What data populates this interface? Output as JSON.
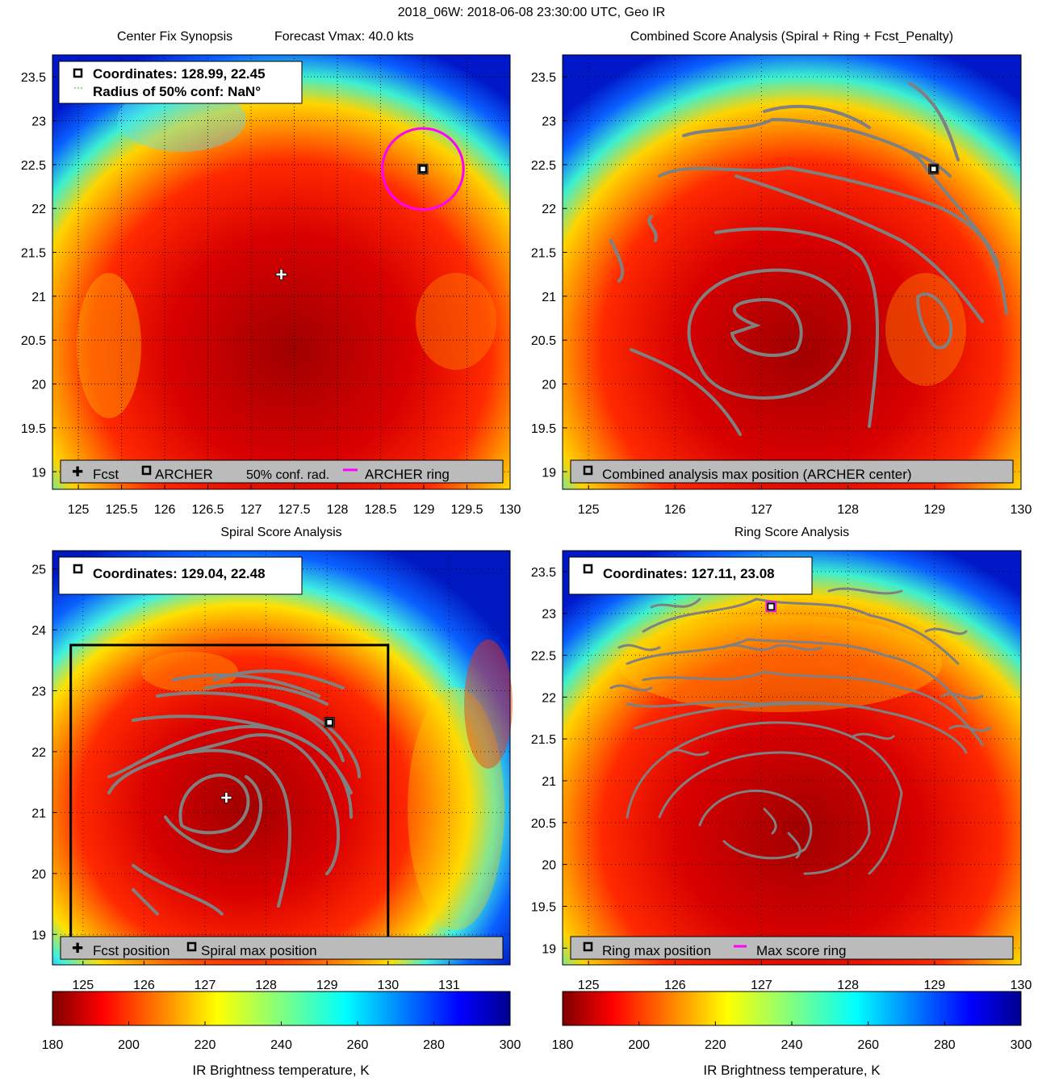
{
  "figure_title": "2018_06W: 2018-06-08 23:30:00 UTC, Geo IR",
  "colors": {
    "magenta": "#ff00ff",
    "contour": "#808080",
    "legend_bg": "#bbbbbb",
    "frame": "#000000"
  },
  "chart_data": [
    {
      "id": "center_fix",
      "type": "heatmap",
      "title": "Center Fix Synopsis",
      "subtitle": "Forecast Vmax: 40.0 kts",
      "xlim": [
        124.7,
        130.0
      ],
      "ylim": [
        18.8,
        23.75
      ],
      "xticks": [
        125,
        125.5,
        126,
        126.5,
        127,
        127.5,
        128,
        128.5,
        129,
        129.5,
        130
      ],
      "xtick_labels": [
        "125",
        "125.5",
        "126",
        "126.5",
        "127",
        "127.5",
        "128",
        "128.5",
        "129",
        "129.5",
        "130"
      ],
      "yticks": [
        19,
        19.5,
        20,
        20.5,
        21,
        21.5,
        22,
        22.5,
        23,
        23.5
      ],
      "ytick_labels": [
        "19",
        "19.5",
        "20",
        "20.5",
        "21",
        "21.5",
        "22",
        "22.5",
        "23",
        "23.5"
      ],
      "info_line1": "Coordinates: 128.99, 22.45",
      "info_line2": "Radius of 50% conf: NaN°",
      "legend": [
        "Fcst",
        "ARCHER",
        "50% conf. rad.",
        "ARCHER ring"
      ],
      "markers": {
        "fcst": [
          127.35,
          21.25
        ],
        "archer": [
          128.99,
          22.45
        ]
      },
      "ring_radius_deg": 0.47
    },
    {
      "id": "combined",
      "type": "heatmap",
      "title": "Combined Score Analysis (Spiral + Ring + Fcst_Penalty)",
      "xlim": [
        124.7,
        130.0
      ],
      "ylim": [
        18.8,
        23.75
      ],
      "xticks": [
        125,
        126,
        127,
        128,
        129,
        130
      ],
      "xtick_labels": [
        "125",
        "126",
        "127",
        "128",
        "129",
        "130"
      ],
      "yticks": [
        19,
        19.5,
        20,
        20.5,
        21,
        21.5,
        22,
        22.5,
        23,
        23.5
      ],
      "ytick_labels": [
        "19",
        "19.5",
        "20",
        "20.5",
        "21",
        "21.5",
        "22",
        "22.5",
        "23",
        "23.5"
      ],
      "legend": [
        "Combined analysis max position (ARCHER center)"
      ],
      "markers": {
        "archer": [
          128.99,
          22.45
        ]
      }
    },
    {
      "id": "spiral",
      "type": "heatmap",
      "title": "Spiral Score Analysis",
      "xlim": [
        124.5,
        132.0
      ],
      "ylim": [
        18.5,
        25.3
      ],
      "xticks": [
        125,
        126,
        127,
        128,
        129,
        130,
        131
      ],
      "xtick_labels": [
        "125",
        "126",
        "127",
        "128",
        "129",
        "130",
        "131"
      ],
      "yticks": [
        19,
        20,
        21,
        22,
        23,
        24,
        25
      ],
      "ytick_labels": [
        "19",
        "20",
        "21",
        "22",
        "23",
        "24",
        "25"
      ],
      "info_line1": "Coordinates: 129.04, 22.48",
      "legend": [
        "Fcst position",
        "Spiral max position"
      ],
      "markers": {
        "fcst": [
          127.35,
          21.25
        ],
        "spiral": [
          129.04,
          22.48
        ]
      },
      "box": {
        "x0": 124.8,
        "x1": 130.0,
        "y0": 18.8,
        "y1": 23.75
      }
    },
    {
      "id": "ring",
      "type": "heatmap",
      "title": "Ring Score Analysis",
      "xlim": [
        124.7,
        130.0
      ],
      "ylim": [
        18.8,
        23.75
      ],
      "xticks": [
        125,
        126,
        127,
        128,
        129,
        130
      ],
      "xtick_labels": [
        "125",
        "126",
        "127",
        "128",
        "129",
        "130"
      ],
      "yticks": [
        19,
        19.5,
        20,
        20.5,
        21,
        21.5,
        22,
        22.5,
        23,
        23.5
      ],
      "ytick_labels": [
        "19",
        "19.5",
        "20",
        "20.5",
        "21",
        "21.5",
        "22",
        "22.5",
        "23",
        "23.5"
      ],
      "info_line1": "Coordinates: 127.11, 23.08",
      "legend": [
        "Ring max position",
        "Max score ring"
      ],
      "markers": {
        "ring": [
          127.11,
          23.08
        ]
      }
    }
  ],
  "colorbars": [
    {
      "label": "IR Brightness temperature, K",
      "range": [
        180,
        300
      ],
      "ticks": [
        "180",
        "200",
        "220",
        "240",
        "260",
        "280",
        "300"
      ]
    },
    {
      "label": "IR Brightness temperature, K",
      "range": [
        180,
        300
      ],
      "ticks": [
        "180",
        "200",
        "220",
        "240",
        "260",
        "280",
        "300"
      ]
    }
  ]
}
